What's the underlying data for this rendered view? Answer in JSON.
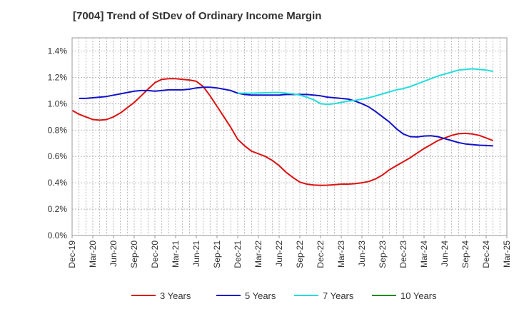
{
  "chart_data": {
    "type": "line",
    "title": "[7004]  Trend of StDev of Ordinary Income Margin",
    "xlabel": "",
    "ylabel": "",
    "x_tick_labels": [
      "Dec-19",
      "Mar-20",
      "Jun-20",
      "Sep-20",
      "Dec-20",
      "Mar-21",
      "Jun-21",
      "Sep-21",
      "Dec-21",
      "Mar-22",
      "Jun-22",
      "Sep-22",
      "Dec-22",
      "Mar-23",
      "Jun-23",
      "Sep-23",
      "Dec-23",
      "Mar-24",
      "Jun-24",
      "Sep-24",
      "Dec-24",
      "Mar-25"
    ],
    "y_tick_labels": [
      "0.0%",
      "0.2%",
      "0.4%",
      "0.6%",
      "0.8%",
      "1.0%",
      "1.2%",
      "1.4%"
    ],
    "ylim": [
      0,
      1.5
    ],
    "y_unit": "%",
    "grid": true,
    "legend_position": "bottom",
    "series": [
      {
        "name": "3 Years",
        "color": "#dd1111",
        "points": [
          [
            "Dec-19",
            0.95
          ],
          [
            "Jan-20",
            0.92
          ],
          [
            "Feb-20",
            0.9
          ],
          [
            "Mar-20",
            0.88
          ],
          [
            "Apr-20",
            0.875
          ],
          [
            "May-20",
            0.88
          ],
          [
            "Jun-20",
            0.9
          ],
          [
            "Jul-20",
            0.93
          ],
          [
            "Aug-20",
            0.97
          ],
          [
            "Sep-20",
            1.01
          ],
          [
            "Oct-20",
            1.06
          ],
          [
            "Nov-20",
            1.11
          ],
          [
            "Dec-20",
            1.16
          ],
          [
            "Jan-21",
            1.185
          ],
          [
            "Feb-21",
            1.19
          ],
          [
            "Mar-21",
            1.19
          ],
          [
            "Apr-21",
            1.185
          ],
          [
            "May-21",
            1.18
          ],
          [
            "Jun-21",
            1.17
          ],
          [
            "Jul-21",
            1.13
          ],
          [
            "Aug-21",
            1.06
          ],
          [
            "Sep-21",
            0.98
          ],
          [
            "Oct-21",
            0.9
          ],
          [
            "Nov-21",
            0.82
          ],
          [
            "Dec-21",
            0.73
          ],
          [
            "Jan-22",
            0.68
          ],
          [
            "Feb-22",
            0.64
          ],
          [
            "Mar-22",
            0.62
          ],
          [
            "Apr-22",
            0.6
          ],
          [
            "May-22",
            0.57
          ],
          [
            "Jun-22",
            0.53
          ],
          [
            "Jul-22",
            0.48
          ],
          [
            "Aug-22",
            0.44
          ],
          [
            "Sep-22",
            0.405
          ],
          [
            "Oct-22",
            0.39
          ],
          [
            "Nov-22",
            0.383
          ],
          [
            "Dec-22",
            0.38
          ],
          [
            "Jan-23",
            0.382
          ],
          [
            "Feb-23",
            0.385
          ],
          [
            "Mar-23",
            0.39
          ],
          [
            "Apr-23",
            0.39
          ],
          [
            "May-23",
            0.393
          ],
          [
            "Jun-23",
            0.4
          ],
          [
            "Jul-23",
            0.41
          ],
          [
            "Aug-23",
            0.43
          ],
          [
            "Sep-23",
            0.46
          ],
          [
            "Oct-23",
            0.5
          ],
          [
            "Nov-23",
            0.53
          ],
          [
            "Dec-23",
            0.56
          ],
          [
            "Jan-24",
            0.59
          ],
          [
            "Feb-24",
            0.625
          ],
          [
            "Mar-24",
            0.66
          ],
          [
            "Apr-24",
            0.69
          ],
          [
            "May-24",
            0.72
          ],
          [
            "Jun-24",
            0.74
          ],
          [
            "Jul-24",
            0.76
          ],
          [
            "Aug-24",
            0.772
          ],
          [
            "Sep-24",
            0.775
          ],
          [
            "Oct-24",
            0.77
          ],
          [
            "Nov-24",
            0.76
          ],
          [
            "Dec-24",
            0.74
          ],
          [
            "Jan-25",
            0.72
          ]
        ]
      },
      {
        "name": "5 Years",
        "color": "#1111cc",
        "points": [
          [
            "Jan-20",
            1.04
          ],
          [
            "Feb-20",
            1.04
          ],
          [
            "Mar-20",
            1.045
          ],
          [
            "Apr-20",
            1.05
          ],
          [
            "May-20",
            1.055
          ],
          [
            "Jun-20",
            1.065
          ],
          [
            "Jul-20",
            1.075
          ],
          [
            "Aug-20",
            1.085
          ],
          [
            "Sep-20",
            1.095
          ],
          [
            "Oct-20",
            1.1
          ],
          [
            "Nov-20",
            1.1
          ],
          [
            "Dec-20",
            1.095
          ],
          [
            "Jan-21",
            1.1
          ],
          [
            "Feb-21",
            1.105
          ],
          [
            "Mar-21",
            1.105
          ],
          [
            "Apr-21",
            1.105
          ],
          [
            "May-21",
            1.11
          ],
          [
            "Jun-21",
            1.12
          ],
          [
            "Jul-21",
            1.125
          ],
          [
            "Aug-21",
            1.125
          ],
          [
            "Sep-21",
            1.12
          ],
          [
            "Oct-21",
            1.11
          ],
          [
            "Nov-21",
            1.1
          ],
          [
            "Dec-21",
            1.08
          ],
          [
            "Jan-22",
            1.07
          ],
          [
            "Feb-22",
            1.065
          ],
          [
            "Mar-22",
            1.065
          ],
          [
            "Apr-22",
            1.065
          ],
          [
            "May-22",
            1.065
          ],
          [
            "Jun-22",
            1.065
          ],
          [
            "Jul-22",
            1.07
          ],
          [
            "Aug-22",
            1.07
          ],
          [
            "Sep-22",
            1.07
          ],
          [
            "Oct-22",
            1.07
          ],
          [
            "Nov-22",
            1.065
          ],
          [
            "Dec-22",
            1.06
          ],
          [
            "Jan-23",
            1.05
          ],
          [
            "Feb-23",
            1.045
          ],
          [
            "Mar-23",
            1.04
          ],
          [
            "Apr-23",
            1.035
          ],
          [
            "May-23",
            1.02
          ],
          [
            "Jun-23",
            1.0
          ],
          [
            "Jul-23",
            0.975
          ],
          [
            "Aug-23",
            0.94
          ],
          [
            "Sep-23",
            0.9
          ],
          [
            "Oct-23",
            0.86
          ],
          [
            "Nov-23",
            0.81
          ],
          [
            "Dec-23",
            0.77
          ],
          [
            "Jan-24",
            0.75
          ],
          [
            "Feb-24",
            0.748
          ],
          [
            "Mar-24",
            0.755
          ],
          [
            "Apr-24",
            0.757
          ],
          [
            "May-24",
            0.75
          ],
          [
            "Jun-24",
            0.735
          ],
          [
            "Jul-24",
            0.72
          ],
          [
            "Aug-24",
            0.705
          ],
          [
            "Sep-24",
            0.695
          ],
          [
            "Oct-24",
            0.69
          ],
          [
            "Nov-24",
            0.685
          ],
          [
            "Dec-24",
            0.683
          ],
          [
            "Jan-25",
            0.68
          ]
        ]
      },
      {
        "name": "7 Years",
        "color": "#22dddd",
        "points": [
          [
            "Dec-21",
            1.08
          ],
          [
            "Jan-22",
            1.08
          ],
          [
            "Feb-22",
            1.08
          ],
          [
            "Mar-22",
            1.082
          ],
          [
            "Apr-22",
            1.083
          ],
          [
            "May-22",
            1.085
          ],
          [
            "Jun-22",
            1.085
          ],
          [
            "Jul-22",
            1.08
          ],
          [
            "Aug-22",
            1.075
          ],
          [
            "Sep-22",
            1.065
          ],
          [
            "Oct-22",
            1.05
          ],
          [
            "Nov-22",
            1.03
          ],
          [
            "Dec-22",
            1.0
          ],
          [
            "Jan-23",
            0.995
          ],
          [
            "Feb-23",
            1.0
          ],
          [
            "Mar-23",
            1.01
          ],
          [
            "Apr-23",
            1.02
          ],
          [
            "May-23",
            1.025
          ],
          [
            "Jun-23",
            1.035
          ],
          [
            "Jul-23",
            1.045
          ],
          [
            "Aug-23",
            1.06
          ],
          [
            "Sep-23",
            1.075
          ],
          [
            "Oct-23",
            1.09
          ],
          [
            "Nov-23",
            1.105
          ],
          [
            "Dec-23",
            1.115
          ],
          [
            "Jan-24",
            1.13
          ],
          [
            "Feb-24",
            1.15
          ],
          [
            "Mar-24",
            1.17
          ],
          [
            "Apr-24",
            1.19
          ],
          [
            "May-24",
            1.21
          ],
          [
            "Jun-24",
            1.225
          ],
          [
            "Jul-24",
            1.24
          ],
          [
            "Aug-24",
            1.255
          ],
          [
            "Sep-24",
            1.26
          ],
          [
            "Oct-24",
            1.265
          ],
          [
            "Nov-24",
            1.26
          ],
          [
            "Dec-24",
            1.255
          ],
          [
            "Jan-25",
            1.245
          ]
        ]
      },
      {
        "name": "10 Years",
        "color": "#228822",
        "points": []
      }
    ]
  }
}
